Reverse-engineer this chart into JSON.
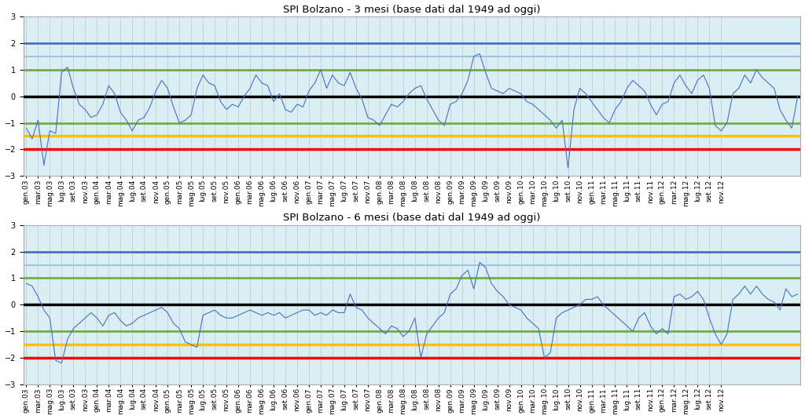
{
  "title1": "SPI Bolzano - 3 mesi (base dati dal 1949 ad oggi)",
  "title2": "SPI Bolzano - 6 mesi (base dati dal 1949 ad oggi)",
  "hlines": [
    {
      "y": 2.0,
      "color": "#4472C4",
      "lw": 2.0
    },
    {
      "y": 1.5,
      "color": "#9DC3E6",
      "lw": 1.5
    },
    {
      "y": 1.0,
      "color": "#70AD47",
      "lw": 2.0
    },
    {
      "y": 0.0,
      "color": "#000000",
      "lw": 2.5
    },
    {
      "y": -1.0,
      "color": "#70AD47",
      "lw": 2.0
    },
    {
      "y": -1.5,
      "color": "#FFC000",
      "lw": 2.5
    },
    {
      "y": -2.0,
      "color": "#FF0000",
      "lw": 2.5
    }
  ],
  "ylim": [
    -3.0,
    3.0
  ],
  "yticks": [
    -3.0,
    -2.0,
    -1.0,
    0.0,
    1.0,
    2.0,
    3.0
  ],
  "line_color": "#4472C4",
  "bg_color": "#FFFFFF",
  "plot_bg_color": "#DAEEF3",
  "spi3": [
    -1.2,
    -1.6,
    -0.9,
    -2.6,
    -1.3,
    -1.4,
    0.9,
    1.1,
    0.3,
    -0.3,
    -0.5,
    -0.8,
    -0.7,
    -0.3,
    0.4,
    0.1,
    -0.6,
    -0.9,
    -1.3,
    -0.9,
    -0.8,
    -0.4,
    0.2,
    0.6,
    0.3,
    -0.4,
    -1.0,
    -0.9,
    -0.7,
    0.3,
    0.8,
    0.5,
    0.4,
    -0.2,
    -0.5,
    -0.3,
    -0.4,
    0.0,
    0.3,
    0.8,
    0.5,
    0.4,
    -0.2,
    0.1,
    -0.5,
    -0.6,
    -0.3,
    -0.4,
    0.2,
    0.5,
    1.0,
    0.3,
    0.8,
    0.5,
    0.4,
    0.9,
    0.3,
    -0.1,
    -0.8,
    -0.9,
    -1.1,
    -0.7,
    -0.3,
    -0.4,
    -0.2,
    0.1,
    0.3,
    0.4,
    -0.1,
    -0.5,
    -0.9,
    -1.1,
    -0.3,
    -0.2,
    0.1,
    0.6,
    1.5,
    1.6,
    0.9,
    0.3,
    0.2,
    0.1,
    0.3,
    0.2,
    0.1,
    -0.2,
    -0.3,
    -0.5,
    -0.7,
    -0.9,
    -1.2,
    -0.9,
    -2.7,
    -0.5,
    0.3,
    0.1,
    -0.2,
    -0.5,
    -0.8,
    -1.0,
    -0.5,
    -0.2,
    0.3,
    0.6,
    0.4,
    0.2,
    -0.3,
    -0.7,
    -0.3,
    -0.2,
    0.5,
    0.8,
    0.4,
    0.1,
    0.6,
    0.8,
    0.3,
    -1.1,
    -1.3,
    -1.0,
    0.1,
    0.3,
    0.8,
    0.5,
    1.0,
    0.7,
    0.5,
    0.3,
    -0.5,
    -0.9,
    -1.2,
    0.0
  ],
  "spi6": [
    0.8,
    0.7,
    0.3,
    -0.2,
    -0.5,
    -2.1,
    -2.2,
    -1.3,
    -0.9,
    -0.7,
    -0.5,
    -0.3,
    -0.5,
    -0.8,
    -0.4,
    -0.3,
    -0.6,
    -0.8,
    -0.7,
    -0.5,
    -0.4,
    -0.3,
    -0.2,
    -0.1,
    -0.3,
    -0.7,
    -0.9,
    -1.4,
    -1.5,
    -1.6,
    -0.4,
    -0.3,
    -0.2,
    -0.4,
    -0.5,
    -0.5,
    -0.4,
    -0.3,
    -0.2,
    -0.3,
    -0.4,
    -0.3,
    -0.4,
    -0.3,
    -0.5,
    -0.4,
    -0.3,
    -0.2,
    -0.2,
    -0.4,
    -0.3,
    -0.4,
    -0.2,
    -0.3,
    -0.3,
    0.4,
    -0.1,
    -0.2,
    -0.5,
    -0.7,
    -0.9,
    -1.1,
    -0.8,
    -0.9,
    -1.2,
    -1.0,
    -0.5,
    -2.0,
    -1.1,
    -0.8,
    -0.5,
    -0.3,
    0.4,
    0.6,
    1.1,
    1.3,
    0.6,
    1.6,
    1.4,
    0.8,
    0.5,
    0.3,
    0.0,
    -0.1,
    -0.2,
    -0.5,
    -0.7,
    -0.9,
    -2.0,
    -1.8,
    -0.5,
    -0.3,
    -0.2,
    -0.1,
    0.0,
    0.2,
    0.2,
    0.3,
    0.0,
    -0.2,
    -0.4,
    -0.6,
    -0.8,
    -1.0,
    -0.5,
    -0.3,
    -0.8,
    -1.1,
    -0.9,
    -1.1,
    0.3,
    0.4,
    0.2,
    0.3,
    0.5,
    0.2,
    -0.5,
    -1.1,
    -1.5,
    -1.1,
    0.2,
    0.4,
    0.7,
    0.4,
    0.7,
    0.4,
    0.2,
    0.1,
    -0.2,
    0.6,
    0.3,
    0.4
  ],
  "xtick_labels": [
    "gen.03",
    "mar.03",
    "mag.03",
    "lug.03",
    "set.03",
    "nov.03",
    "gen.04",
    "mar.04",
    "mag.04",
    "lug.04",
    "set.04",
    "nov.04",
    "gen.05",
    "mar.05",
    "mag.05",
    "lug.05",
    "set.05",
    "nov.05",
    "gen.06",
    "mar.06",
    "mag.06",
    "lug.06",
    "set.06",
    "nov.06",
    "gen.07",
    "mar.07",
    "mag.07",
    "lug.07",
    "set.07",
    "nov.07",
    "gen.08",
    "mar.08",
    "mag.08",
    "lug.08",
    "set.08",
    "nov.08",
    "gen.09",
    "mar.09",
    "mag.09",
    "lug.09",
    "set.09",
    "nov.09",
    "gen.10",
    "mar.10",
    "mag.10",
    "lug.10",
    "set.10",
    "nov.10",
    "gen.11",
    "mar.11",
    "mag.11",
    "lug.11",
    "set.11",
    "nov.11",
    "gen.12",
    "mar.12",
    "mag.12",
    "lug.12",
    "set.12",
    "nov.12"
  ]
}
